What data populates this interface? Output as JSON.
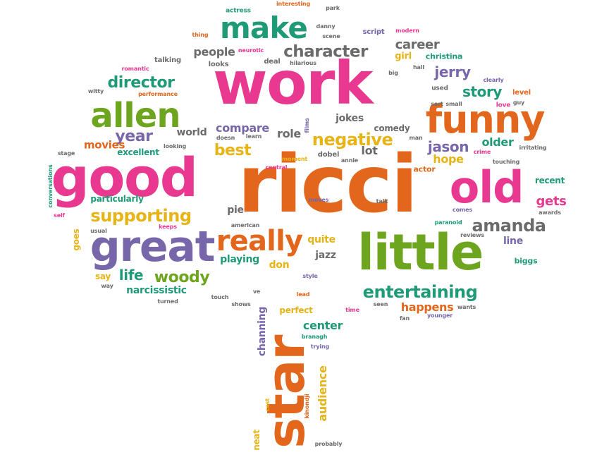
{
  "words": {
    "work": "work",
    "ricci": "ricci",
    "good": "good",
    "little": "little",
    "star": "star",
    "great": "great",
    "funny": "funny",
    "old": "old",
    "allen": "allen",
    "make": "make",
    "really": "really",
    "character": "character",
    "negative": "negative",
    "supporting": "supporting",
    "entertaining": "entertaining",
    "amanda": "amanda",
    "director": "director",
    "year": "year",
    "best": "best",
    "woody": "woody",
    "story": "story",
    "jerry": "jerry",
    "jason": "jason",
    "people": "people",
    "career": "career",
    "older": "older",
    "gets": "gets",
    "life": "life",
    "movies": "movies",
    "world": "world",
    "compare": "compare",
    "role": "role",
    "hope": "hope",
    "lot": "lot",
    "happens": "happens",
    "center": "center",
    "audience": "audience",
    "channing": "channing",
    "narcissistic": "narcissistic",
    "jokes": "jokes",
    "comedy": "comedy",
    "line": "line",
    "pie": "pie",
    "quite": "quite",
    "jazz": "jazz",
    "playing": "playing",
    "don": "don",
    "particularly": "particularly",
    "excellent": "excellent",
    "perfect": "perfect",
    "girl": "girl",
    "christina": "christina",
    "actor": "actor",
    "recent": "recent",
    "goes": "goes",
    "say": "say",
    "biggs": "biggs",
    "neat": "neat",
    "talking": "talking",
    "looks": "looks",
    "deal": "deal",
    "script": "script",
    "used": "used",
    "level": "level",
    "love": "love",
    "dobel": "dobel",
    "actress": "actress",
    "interesting": "interesting",
    "park": "park",
    "danny": "danny",
    "scene": "scene",
    "thing": "thing",
    "modern": "modern",
    "neurotic": "neurotic",
    "hilarious": "hilarious",
    "big": "big",
    "hall": "hall",
    "romantic": "romantic",
    "witty": "witty",
    "performance": "performance",
    "clearly": "clearly",
    "sort": "sort",
    "small": "small",
    "guy": "guy",
    "doesn": "doesn",
    "learn": "learn",
    "films": "films",
    "man": "man",
    "stage": "stage",
    "looking": "looking",
    "crime": "crime",
    "irritating": "irritating",
    "moment": "moment",
    "annie": "annie",
    "touching": "touching",
    "central": "central",
    "conversations": "conversations",
    "self": "self",
    "moves": "moves",
    "talk": "talk",
    "comes": "comes",
    "awards": "awards",
    "keeps": "keeps",
    "usual": "usual",
    "american": "american",
    "paranoid": "paranoid",
    "reviews": "reviews",
    "way": "way",
    "turned": "turned",
    "touch": "touch",
    "shows": "shows",
    "ve": "ve",
    "lead": "lead",
    "style": "style",
    "seen": "seen",
    "wants": "wants",
    "time": "time",
    "fan": "fan",
    "younger": "younger",
    "branagh": "branagh",
    "trying": "trying",
    "cast": "cast",
    "kinondji": "kinondji",
    "probably": "probably"
  }
}
